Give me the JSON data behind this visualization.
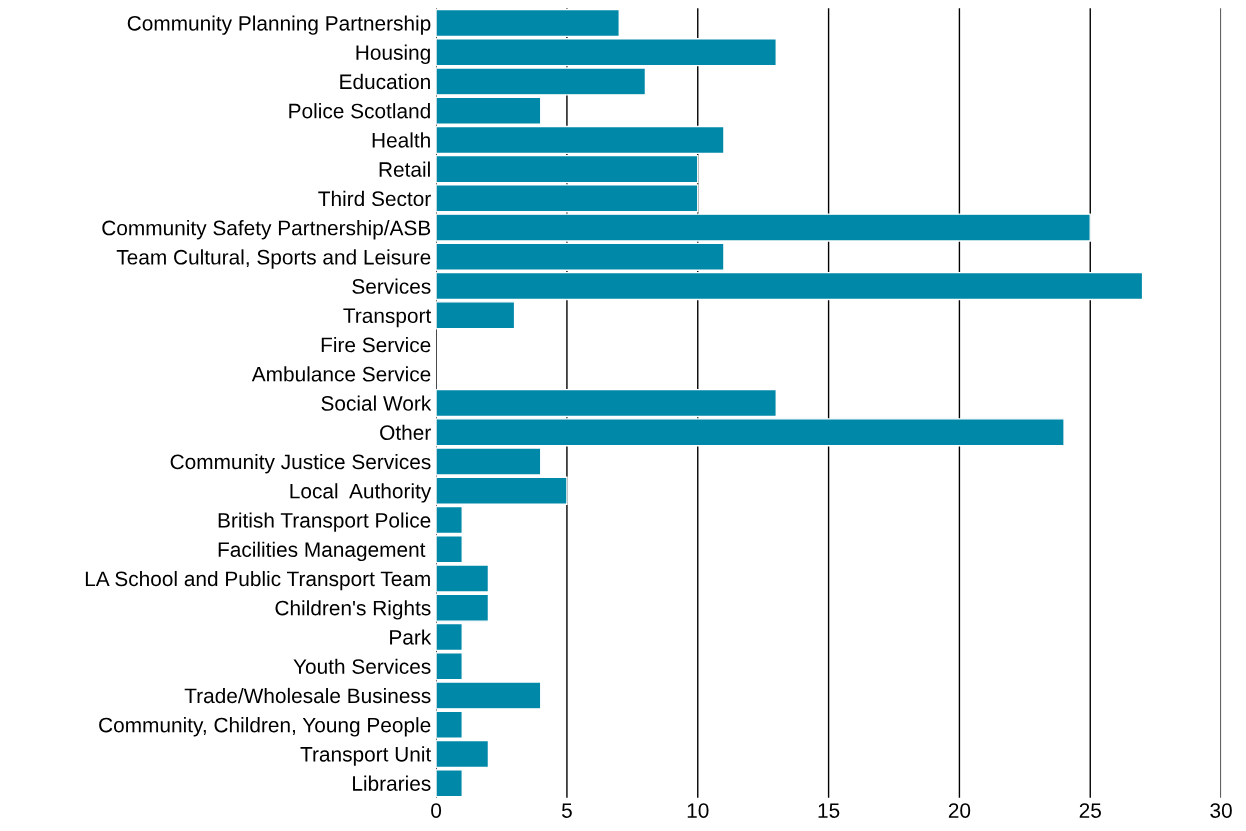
{
  "chart_data": {
    "type": "bar",
    "orientation": "horizontal",
    "categories": [
      "Community Planning Partnership",
      "Housing",
      "Education",
      "Police Scotland",
      "Health",
      "Retail",
      "Third Sector",
      "Community Safety Partnership/ASB",
      "Team Cultural, Sports and Leisure",
      "Services",
      "Transport",
      "Fire Service",
      "Ambulance Service",
      "Social Work",
      "Other",
      "Community Justice Services",
      "Local  Authority",
      "British Transport Police",
      "Facilities Management ",
      "LA School and Public Transport Team",
      "Children's Rights",
      "Park",
      "Youth Services",
      "Trade/Wholesale Business",
      "Community, Children, Young People",
      "Transport Unit",
      "Libraries"
    ],
    "values": [
      7,
      13,
      8,
      4,
      11,
      10,
      10,
      25,
      11,
      27,
      3,
      0,
      0,
      13,
      24,
      4,
      5,
      1,
      1,
      2,
      2,
      1,
      1,
      4,
      1,
      2,
      1
    ],
    "color": "#0088a8",
    "xlim": [
      0,
      30
    ],
    "xticks": [
      0,
      5,
      10,
      15,
      20,
      25,
      30
    ],
    "grid": "x",
    "legend": false
  }
}
